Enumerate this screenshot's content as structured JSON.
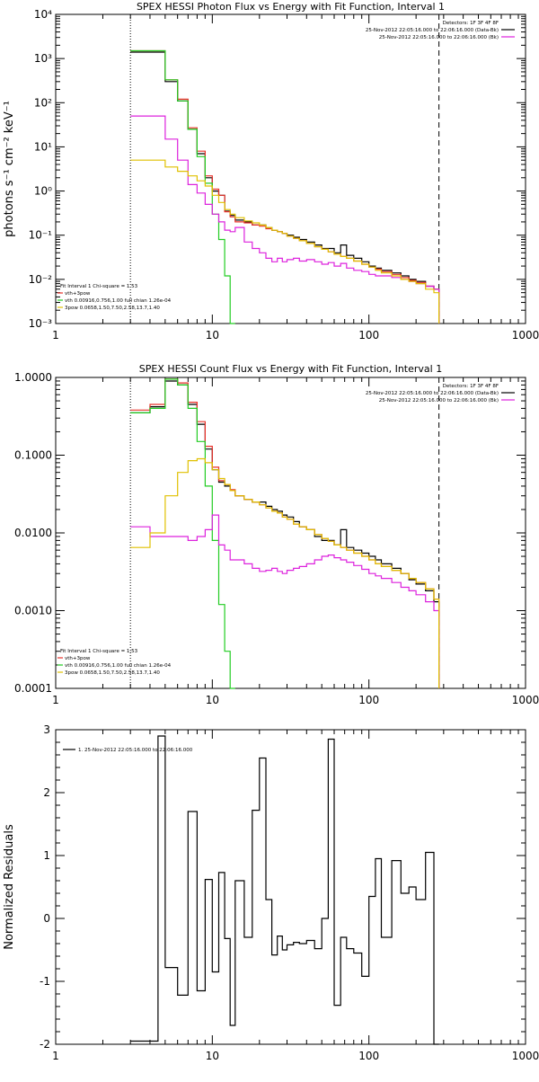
{
  "chart_data": [
    {
      "type": "line",
      "title": "SPEX HESSI Photon Flux vs Energy with Fit Function, Interval 1",
      "xlabel": "",
      "ylabel": "photons s⁻¹ cm⁻² keV⁻¹",
      "x_scale": "log",
      "y_scale": "log",
      "xlim": [
        1,
        1000
      ],
      "ylim": [
        0.001,
        10000
      ],
      "x_ticks": [
        "1",
        "10",
        "100",
        "1000"
      ],
      "y_ticks": [
        "10⁻³",
        "10⁻²",
        "10⁻¹",
        "10⁰",
        "10¹",
        "10²",
        "10³",
        "10⁴"
      ],
      "legend_top_right": [
        "Detectors: 1F 3F 4F 8F",
        "25-Nov-2012 22:05:16.000 to 22:06:16.000 (Data-Bk)",
        "25-Nov-2012 22:05:16.000 to 22:06:16.000 (Bk)"
      ],
      "legend_bottom_left": [
        "Fit Interval 1   Chi-square = 1.53",
        "vth+3pow",
        "vth 0.00916,0.756,1.00  full chian 1.26e-04",
        "3pow 0.0658,1.50,7.50,2.58,13.7,1.40"
      ],
      "vlines": {
        "dotted": 3,
        "dashed": 280
      },
      "series": [
        {
          "color": "#000000",
          "style": "step",
          "x": [
            3,
            4,
            5,
            6,
            7,
            8,
            9,
            10,
            11,
            12,
            13,
            14,
            16,
            18,
            20,
            22,
            24,
            26,
            28,
            30,
            33,
            36,
            40,
            45,
            50,
            55,
            60,
            66,
            72,
            80,
            90,
            100,
            110,
            120,
            140,
            160,
            180,
            200,
            230,
            260,
            280
          ],
          "y": [
            1400,
            1400,
            300,
            110,
            25,
            7,
            2,
            1.0,
            0.8,
            0.35,
            0.28,
            0.22,
            0.2,
            0.17,
            0.17,
            0.15,
            0.13,
            0.12,
            0.11,
            0.1,
            0.09,
            0.08,
            0.07,
            0.06,
            0.05,
            0.05,
            0.04,
            0.06,
            0.035,
            0.03,
            0.025,
            0.02,
            0.018,
            0.016,
            0.014,
            0.012,
            0.01,
            0.009,
            0.007,
            0.006,
            0.001
          ]
        },
        {
          "color": "#e8322a",
          "style": "step",
          "x": [
            3,
            4,
            5,
            6,
            7,
            8,
            9,
            10,
            11,
            12,
            13,
            14,
            16,
            18,
            20,
            22,
            24,
            26,
            28,
            30,
            33,
            36,
            40,
            45,
            50,
            55,
            60,
            66,
            72,
            80,
            90,
            100,
            110,
            120,
            140,
            160,
            180,
            200,
            230,
            260,
            280
          ],
          "y": [
            1500,
            1500,
            330,
            120,
            27,
            8,
            2.2,
            1.1,
            0.8,
            0.34,
            0.26,
            0.2,
            0.19,
            0.17,
            0.16,
            0.14,
            0.13,
            0.12,
            0.11,
            0.095,
            0.085,
            0.075,
            0.065,
            0.055,
            0.048,
            0.042,
            0.037,
            0.033,
            0.03,
            0.026,
            0.022,
            0.019,
            0.017,
            0.015,
            0.013,
            0.011,
            0.0095,
            0.0085,
            0.007,
            0.006,
            0.001
          ]
        },
        {
          "color": "#22cc22",
          "style": "step",
          "x": [
            3,
            4,
            5,
            6,
            7,
            8,
            9,
            10,
            11,
            12,
            13,
            14
          ],
          "y": [
            1500,
            1500,
            330,
            110,
            25,
            6,
            1.5,
            0.3,
            0.08,
            0.012,
            0.001,
            0.001
          ]
        },
        {
          "color": "#dd22dd",
          "style": "step",
          "x": [
            3,
            4,
            5,
            6,
            7,
            8,
            9,
            10,
            11,
            12,
            13,
            14,
            16,
            18,
            20,
            22,
            24,
            26,
            28,
            30,
            33,
            36,
            40,
            45,
            50,
            55,
            60,
            66,
            72,
            80,
            90,
            100,
            110,
            120,
            140,
            160,
            180,
            200,
            230,
            260,
            280
          ],
          "y": [
            50,
            50,
            15,
            5,
            1.4,
            0.9,
            0.5,
            0.3,
            0.2,
            0.13,
            0.12,
            0.15,
            0.07,
            0.05,
            0.04,
            0.03,
            0.025,
            0.03,
            0.025,
            0.028,
            0.03,
            0.026,
            0.028,
            0.025,
            0.022,
            0.024,
            0.02,
            0.023,
            0.018,
            0.016,
            0.015,
            0.013,
            0.012,
            0.012,
            0.011,
            0.01,
            0.009,
            0.008,
            0.007,
            0.006,
            0.001
          ]
        },
        {
          "color": "#e0c000",
          "style": "step",
          "x": [
            3,
            4,
            5,
            6,
            7,
            8,
            9,
            10,
            11,
            12,
            13,
            14,
            16,
            18,
            20,
            22,
            24,
            26,
            28,
            30,
            33,
            36,
            40,
            45,
            50,
            55,
            60,
            66,
            72,
            80,
            90,
            100,
            110,
            120,
            140,
            160,
            180,
            200,
            230,
            260,
            280
          ],
          "y": [
            5,
            5,
            3.5,
            2.8,
            2.2,
            1.7,
            1.3,
            0.8,
            0.55,
            0.38,
            0.3,
            0.25,
            0.21,
            0.19,
            0.17,
            0.15,
            0.13,
            0.12,
            0.11,
            0.095,
            0.085,
            0.075,
            0.065,
            0.055,
            0.048,
            0.042,
            0.037,
            0.033,
            0.03,
            0.026,
            0.022,
            0.019,
            0.016,
            0.014,
            0.012,
            0.01,
            0.009,
            0.008,
            0.006,
            0.005,
            0.001
          ]
        }
      ]
    },
    {
      "type": "line",
      "title": "SPEX HESSI Count Flux vs Energy with Fit Function, Interval 1",
      "xlabel": "",
      "ylabel": "",
      "x_scale": "log",
      "y_scale": "log",
      "xlim": [
        1,
        1000
      ],
      "ylim": [
        0.0001,
        1.0
      ],
      "x_ticks": [
        "1",
        "10",
        "100",
        "1000"
      ],
      "y_ticks": [
        "0.0001",
        "0.0010",
        "0.0100",
        "0.1000",
        "1.0000"
      ],
      "legend_top_right": [
        "Detectors: 1F 3F 4F 8F",
        "25-Nov-2012 22:05:16.000 to 22:06:16.000 (Data-Bk)",
        "25-Nov-2012 22:05:16.000 to 22:06:16.000 (Bk)"
      ],
      "legend_bottom_left": [
        "Fit Interval 1   Chi-square = 1.53",
        "vth+3pow",
        "vth 0.00916,0.756,1.00  full chian 1.26e-04",
        "3pow 0.0658,1.50,7.50,2.58,13.7,1.40"
      ],
      "vlines": {
        "dotted": 3,
        "dashed": 280
      },
      "series": [
        {
          "color": "#000000",
          "style": "step",
          "x": [
            3,
            4,
            5,
            6,
            7,
            8,
            9,
            10,
            11,
            12,
            13,
            14,
            16,
            18,
            20,
            22,
            24,
            26,
            28,
            30,
            33,
            36,
            40,
            45,
            50,
            55,
            60,
            66,
            72,
            80,
            90,
            100,
            110,
            120,
            140,
            160,
            180,
            200,
            230,
            260,
            280
          ],
          "y": [
            0.35,
            0.42,
            0.9,
            0.8,
            0.45,
            0.25,
            0.12,
            0.065,
            0.045,
            0.04,
            0.035,
            0.03,
            0.027,
            0.025,
            0.025,
            0.022,
            0.02,
            0.019,
            0.017,
            0.016,
            0.014,
            0.012,
            0.011,
            0.009,
            0.008,
            0.008,
            0.007,
            0.011,
            0.0065,
            0.006,
            0.0055,
            0.005,
            0.0045,
            0.004,
            0.0035,
            0.003,
            0.0025,
            0.0022,
            0.0018,
            0.0013,
            0.0001
          ]
        },
        {
          "color": "#e8322a",
          "style": "step",
          "x": [
            3,
            4,
            5,
            6,
            7,
            8,
            9,
            10,
            11,
            12,
            13,
            14,
            16,
            18,
            20,
            22,
            24,
            26,
            28,
            30,
            33,
            36,
            40,
            45,
            50,
            55,
            60,
            66,
            72,
            80,
            90,
            100,
            110,
            120,
            140,
            160,
            180,
            200,
            230,
            260,
            280
          ],
          "y": [
            0.38,
            0.45,
            0.95,
            0.85,
            0.48,
            0.27,
            0.13,
            0.07,
            0.047,
            0.042,
            0.036,
            0.03,
            0.027,
            0.025,
            0.023,
            0.021,
            0.019,
            0.018,
            0.016,
            0.015,
            0.013,
            0.012,
            0.011,
            0.0095,
            0.0085,
            0.0078,
            0.007,
            0.0065,
            0.006,
            0.0055,
            0.005,
            0.0045,
            0.004,
            0.0037,
            0.0033,
            0.003,
            0.0026,
            0.0023,
            0.0019,
            0.0014,
            0.0001
          ]
        },
        {
          "color": "#22cc22",
          "style": "step",
          "x": [
            3,
            4,
            5,
            6,
            7,
            8,
            9,
            10,
            11,
            12,
            13,
            14
          ],
          "y": [
            0.35,
            0.4,
            0.95,
            0.8,
            0.4,
            0.15,
            0.04,
            0.008,
            0.0012,
            0.0003,
            0.0001,
            0.0001
          ]
        },
        {
          "color": "#dd22dd",
          "style": "step",
          "x": [
            3,
            4,
            5,
            6,
            7,
            8,
            9,
            10,
            11,
            12,
            13,
            14,
            16,
            18,
            20,
            22,
            24,
            26,
            28,
            30,
            33,
            36,
            40,
            45,
            50,
            55,
            60,
            66,
            72,
            80,
            90,
            100,
            110,
            120,
            140,
            160,
            180,
            200,
            230,
            260,
            280
          ],
          "y": [
            0.012,
            0.009,
            0.009,
            0.009,
            0.008,
            0.009,
            0.011,
            0.017,
            0.007,
            0.006,
            0.0045,
            0.0045,
            0.004,
            0.0035,
            0.0032,
            0.0033,
            0.0035,
            0.0032,
            0.003,
            0.0033,
            0.0035,
            0.0037,
            0.004,
            0.0045,
            0.005,
            0.0052,
            0.0048,
            0.0045,
            0.0042,
            0.0038,
            0.0034,
            0.003,
            0.0028,
            0.0026,
            0.0023,
            0.002,
            0.0018,
            0.0016,
            0.0013,
            0.001,
            0.0001
          ]
        },
        {
          "color": "#e0c000",
          "style": "step",
          "x": [
            3,
            4,
            5,
            6,
            7,
            8,
            9,
            10,
            11,
            12,
            13,
            14,
            16,
            18,
            20,
            22,
            24,
            26,
            28,
            30,
            33,
            36,
            40,
            45,
            50,
            55,
            60,
            66,
            72,
            80,
            90,
            100,
            110,
            120,
            140,
            160,
            180,
            200,
            230,
            260,
            280
          ],
          "y": [
            0.0065,
            0.01,
            0.03,
            0.06,
            0.085,
            0.09,
            0.08,
            0.065,
            0.05,
            0.042,
            0.035,
            0.03,
            0.027,
            0.025,
            0.023,
            0.021,
            0.019,
            0.018,
            0.016,
            0.015,
            0.013,
            0.012,
            0.011,
            0.0095,
            0.0085,
            0.0078,
            0.007,
            0.0065,
            0.006,
            0.0055,
            0.005,
            0.0045,
            0.004,
            0.0037,
            0.0033,
            0.003,
            0.0026,
            0.0023,
            0.0019,
            0.0014,
            0.0001
          ]
        }
      ]
    },
    {
      "type": "line",
      "title": "",
      "xlabel": "",
      "ylabel": "Normalized Residuals",
      "x_scale": "log",
      "y_scale": "linear",
      "xlim": [
        1,
        1000
      ],
      "ylim": [
        -2,
        3
      ],
      "x_ticks": [
        "1",
        "10",
        "100",
        "1000"
      ],
      "y_ticks": [
        "-2",
        "-1",
        "0",
        "1",
        "2",
        "3"
      ],
      "legend_top_left": [
        "1. 25-Nov-2012 22:05:16.000 to 22:06:16.000"
      ],
      "series": [
        {
          "color": "#000000",
          "style": "step",
          "x": [
            3,
            4,
            4.5,
            5,
            6,
            7,
            8,
            9,
            10,
            11,
            12,
            13,
            14,
            16,
            18,
            20,
            22,
            24,
            26,
            28,
            30,
            33,
            36,
            40,
            45,
            50,
            55,
            60,
            66,
            72,
            80,
            90,
            100,
            110,
            120,
            140,
            160,
            180,
            200,
            230,
            260,
            280
          ],
          "y": [
            -1.95,
            -1.95,
            2.9,
            -0.78,
            -1.22,
            1.7,
            -1.15,
            0.62,
            -0.85,
            0.73,
            -0.32,
            -1.7,
            0.6,
            -0.3,
            1.72,
            2.55,
            0.3,
            -0.58,
            -0.28,
            -0.5,
            -0.42,
            -0.38,
            -0.4,
            -0.35,
            -0.48,
            0.0,
            2.85,
            -1.38,
            -0.3,
            -0.48,
            -0.55,
            -0.92,
            0.35,
            0.95,
            -0.3,
            0.92,
            0.4,
            0.5,
            0.3,
            1.05,
            -2.0,
            -2.0
          ]
        }
      ]
    }
  ]
}
